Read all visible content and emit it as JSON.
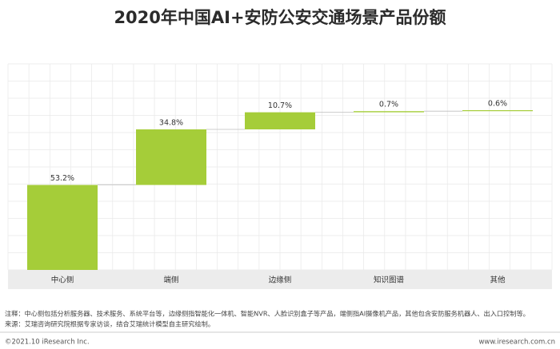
{
  "chart_data": {
    "type": "waterfall",
    "title": "2020年中国AI+安防公安交通场景产品份额",
    "categories": [
      "中心侧",
      "端侧",
      "边缘侧",
      "知识图谱",
      "其他"
    ],
    "values": [
      53.2,
      34.8,
      10.7,
      0.7,
      0.6
    ],
    "value_labels": [
      "53.2%",
      "34.8%",
      "10.7%",
      "0.7%",
      "0.6%"
    ],
    "color": "#a5cd39"
  },
  "footer": {
    "notes": [
      "注释：中心侧包括分析服务器、技术服务、系统平台等，边缘侧指智能化一体机、智能NVR、人脸识别盒子等产品，端侧指AI摄像机产品，其他包含安防服务机器人、出入口控制等。",
      "来源：艾瑞咨询研究院根据专家访谈，结合艾瑞统计模型自主研究绘制。"
    ],
    "copyright": "©2021.10 iResearch Inc.",
    "website": "www.iresearch.com.cn"
  }
}
